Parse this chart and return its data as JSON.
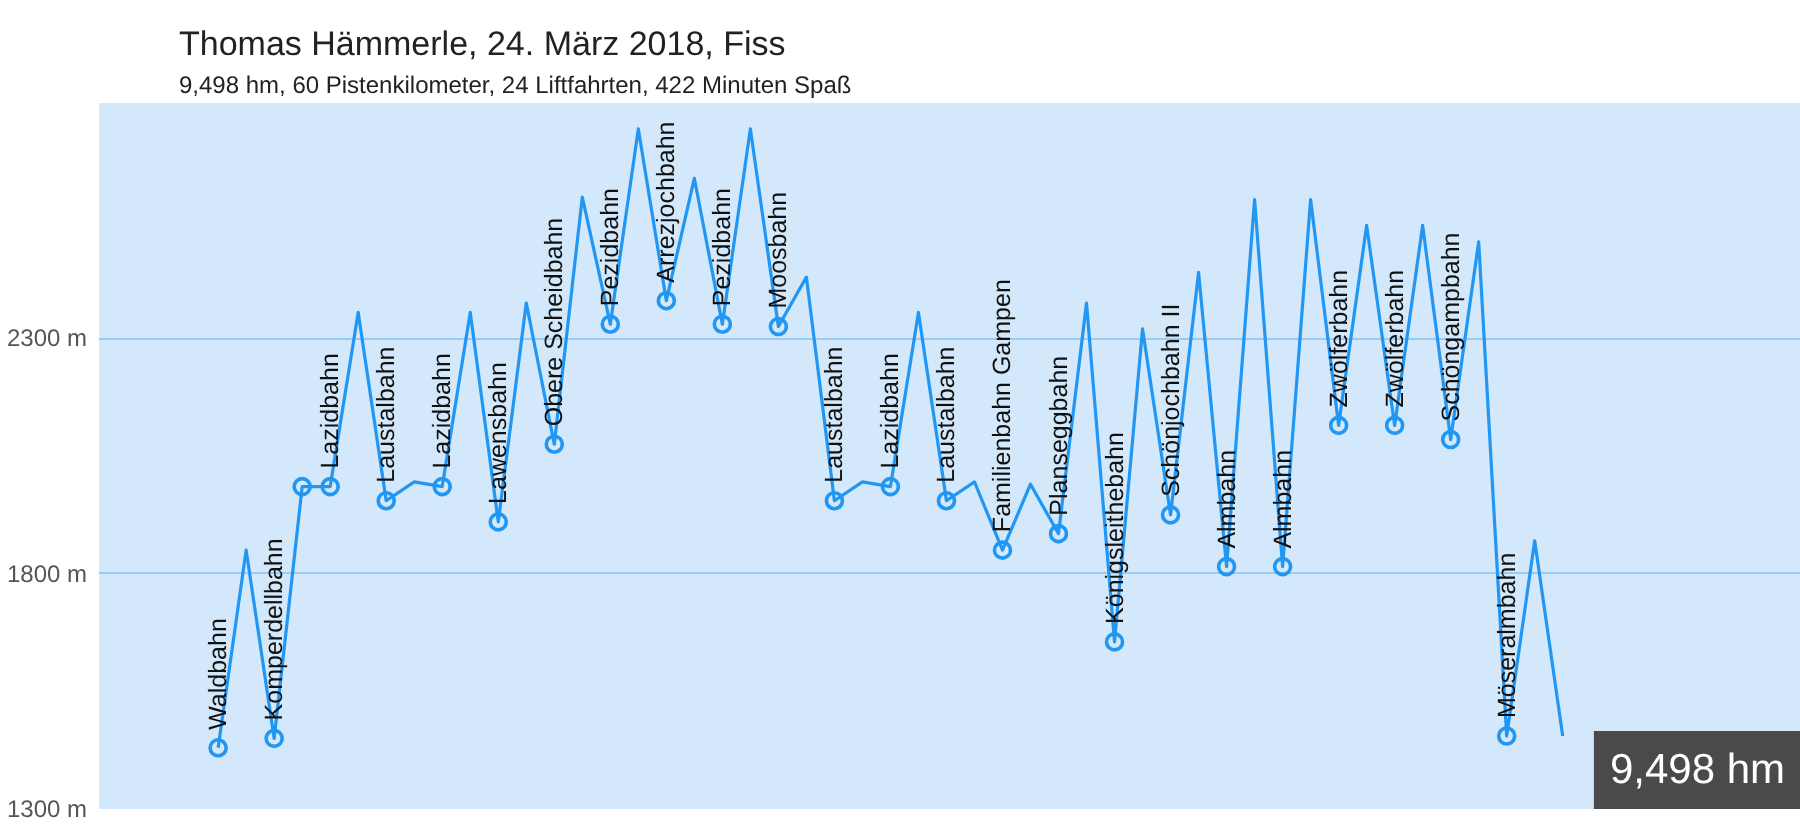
{
  "chart_data": {
    "type": "line",
    "title": "Thomas Hämmerle, 24. März 2018, Fiss",
    "subtitle": "9,498 hm, 60 Pistenkilometer, 24 Liftfahrten, 422 Minuten Spaß",
    "categories": [
      "Waldbahn",
      null,
      "Komperdellbahn",
      null,
      "Lazidbahn",
      null,
      "Laustalbahn",
      null,
      "Lazidbahn",
      null,
      "Lawensbahn",
      null,
      "Obere Scheidbahn",
      null,
      "Pezidbahn",
      null,
      "Arrezjochbahn",
      null,
      "Pezidbahn",
      null,
      "Moosbahn",
      null,
      "Laustalbahn",
      null,
      "Lazidbahn",
      null,
      "Laustalbahn",
      null,
      "Familienbahn Gampen",
      null,
      "Planseggbahn",
      null,
      "Königsleithebahn",
      null,
      "Schönjochbahn II",
      null,
      "Almbahn",
      null,
      "Almbahn",
      null,
      "Zwölferbahn",
      null,
      "Zwölferbahn",
      null,
      "Schöngampbahn",
      null,
      "Möseralmbahn",
      null,
      null
    ],
    "series": [
      {
        "color": "#2196f3",
        "values": [
          1430,
          1850,
          1450,
          1985,
          1985,
          2355,
          1955,
          1995,
          1985,
          2355,
          1910,
          2375,
          2075,
          2600,
          2330,
          2745,
          2380,
          2640,
          2330,
          2745,
          2325,
          2430,
          1955,
          1995,
          1985,
          2355,
          1955,
          1995,
          1850,
          1990,
          1885,
          2375,
          1655,
          2320,
          1925,
          2440,
          1815,
          2595,
          1815,
          2595,
          2115,
          2540,
          2115,
          2540,
          2085,
          2505,
          1455,
          1870,
          1455
        ]
      },
      {
        "type": "scatter",
        "color": "#2196f3",
        "marker": "circle",
        "values": [
          1430,
          null,
          1450,
          1985,
          1985,
          null,
          1955,
          null,
          1985,
          null,
          1910,
          null,
          2075,
          null,
          2330,
          null,
          2380,
          null,
          2330,
          null,
          2325,
          null,
          1955,
          null,
          1985,
          null,
          1955,
          null,
          1850,
          null,
          1885,
          null,
          1655,
          null,
          1925,
          null,
          1815,
          null,
          1815,
          null,
          2115,
          null,
          2115,
          null,
          2085,
          null,
          1455,
          null,
          null
        ]
      }
    ],
    "marker": "none",
    "line_style": "solid",
    "ylim": [
      1300,
      2800
    ],
    "yticks": [
      {
        "value": 1300,
        "label": "1300 m"
      },
      {
        "value": 1800,
        "label": "1800 m"
      },
      {
        "value": 2300,
        "label": "2300 m"
      }
    ],
    "grid": "y",
    "tick_labels": "y",
    "annotations": [
      "9,498 hm"
    ]
  }
}
